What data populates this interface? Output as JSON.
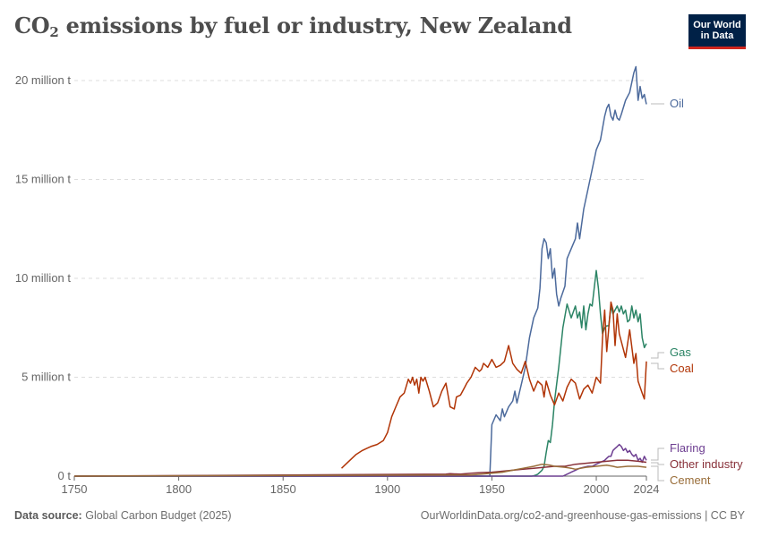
{
  "title": {
    "main": "CO",
    "subscript": "2",
    "rest": " emissions by fuel or industry, New Zealand"
  },
  "logo": {
    "line1": "Our World",
    "line2": "in Data"
  },
  "footer": {
    "source_label": "Data source:",
    "source_value": "Global Carbon Budget (2025)",
    "attribution": "OurWorldinData.org/co2-and-greenhouse-gas-emissions | CC BY"
  },
  "colors": {
    "Oil": "#4c6a9c",
    "Gas": "#2b8465",
    "Coal": "#b13507",
    "Flaring": "#6d3e91",
    "Other industry": "#883039",
    "Cement": "#996d39",
    "grid": "#dddddd",
    "axis": "#666666",
    "text": "#5b5b5b",
    "logo_bg": "#002147",
    "logo_accent": "#ce261e"
  },
  "chart_data": {
    "type": "line",
    "xlim": [
      1750,
      2024
    ],
    "ylim": [
      0,
      20000000
    ],
    "x_ticks": [
      {
        "value": 1750,
        "label": "1750"
      },
      {
        "value": 1800,
        "label": "1800"
      },
      {
        "value": 1850,
        "label": "1850"
      },
      {
        "value": 1900,
        "label": "1900"
      },
      {
        "value": 1950,
        "label": "1950"
      },
      {
        "value": 2000,
        "label": "2000"
      },
      {
        "value": 2024,
        "label": "2024"
      }
    ],
    "y_ticks": [
      {
        "value": 0,
        "label": "0 t"
      },
      {
        "value": 5000000,
        "label": "5 million t"
      },
      {
        "value": 10000000,
        "label": "10 million t"
      },
      {
        "value": 15000000,
        "label": "15 million t"
      },
      {
        "value": 20000000,
        "label": "20 million t"
      }
    ],
    "grid": "horizontal dashed",
    "legend": "right (end-of-line labels)",
    "series": [
      {
        "name": "Oil",
        "x": [
          1750,
          1948,
          1949,
          1950,
          1952,
          1954,
          1955,
          1956,
          1958,
          1960,
          1961,
          1962,
          1964,
          1966,
          1968,
          1970,
          1972,
          1973,
          1974,
          1975,
          1976,
          1977,
          1978,
          1979,
          1980,
          1981,
          1982,
          1983,
          1985,
          1986,
          1988,
          1990,
          1991,
          1992,
          1994,
          1996,
          1998,
          2000,
          2002,
          2004,
          2005,
          2006,
          2007,
          2008,
          2009,
          2010,
          2011,
          2012,
          2014,
          2016,
          2018,
          2019,
          2020,
          2021,
          2022,
          2023,
          2024
        ],
        "values": [
          0,
          0,
          0,
          2600000,
          3100000,
          2800000,
          3400000,
          3000000,
          3500000,
          3800000,
          4300000,
          3700000,
          4600000,
          5500000,
          7000000,
          8000000,
          8500000,
          9500000,
          11500000,
          12000000,
          11800000,
          11000000,
          11500000,
          10000000,
          10500000,
          9200000,
          8600000,
          9000000,
          9600000,
          11000000,
          11500000,
          12000000,
          12800000,
          12000000,
          13500000,
          14500000,
          15500000,
          16500000,
          17000000,
          18200000,
          18600000,
          18800000,
          18200000,
          18000000,
          18500000,
          18100000,
          18000000,
          18300000,
          19000000,
          19400000,
          20400000,
          20700000,
          19000000,
          19700000,
          19100000,
          19300000,
          18800000
        ]
      },
      {
        "name": "Gas",
        "x": [
          1750,
          1969,
          1970,
          1971,
          1972,
          1973,
          1974,
          1975,
          1976,
          1977,
          1978,
          1979,
          1980,
          1982,
          1984,
          1986,
          1988,
          1990,
          1991,
          1992,
          1993,
          1994,
          1995,
          1996,
          1997,
          1998,
          1999,
          2000,
          2001,
          2002,
          2003,
          2004,
          2005,
          2006,
          2007,
          2008,
          2009,
          2010,
          2011,
          2012,
          2013,
          2014,
          2015,
          2016,
          2017,
          2018,
          2019,
          2020,
          2021,
          2022,
          2023,
          2024
        ],
        "values": [
          0,
          0,
          20000,
          50000,
          100000,
          200000,
          300000,
          500000,
          1200000,
          1800000,
          1700000,
          2600000,
          3800000,
          5500000,
          7500000,
          8700000,
          8000000,
          8600000,
          8000000,
          8300000,
          7500000,
          8600000,
          7400000,
          8200000,
          8700000,
          8600000,
          9500000,
          10400000,
          9500000,
          8200000,
          7200000,
          7500000,
          7600000,
          7600000,
          8600000,
          8200000,
          8400000,
          8600000,
          8300000,
          8600000,
          8200000,
          8400000,
          7800000,
          7900000,
          8600000,
          8000000,
          8400000,
          7800000,
          8200000,
          7000000,
          6500000,
          6700000
        ]
      },
      {
        "name": "Coal",
        "x": [
          1878,
          1880,
          1882,
          1885,
          1888,
          1890,
          1892,
          1895,
          1898,
          1900,
          1902,
          1904,
          1906,
          1908,
          1910,
          1911,
          1912,
          1913,
          1914,
          1915,
          1916,
          1917,
          1918,
          1920,
          1922,
          1924,
          1926,
          1928,
          1930,
          1932,
          1933,
          1935,
          1937,
          1938,
          1940,
          1942,
          1944,
          1945,
          1946,
          1948,
          1950,
          1952,
          1954,
          1956,
          1958,
          1960,
          1962,
          1964,
          1966,
          1968,
          1970,
          1972,
          1974,
          1975,
          1976,
          1978,
          1980,
          1982,
          1984,
          1986,
          1988,
          1990,
          1992,
          1994,
          1996,
          1998,
          2000,
          2002,
          2003,
          2004,
          2005,
          2006,
          2007,
          2008,
          2009,
          2010,
          2011,
          2012,
          2014,
          2016,
          2018,
          2019,
          2020,
          2021,
          2022,
          2023,
          2024
        ],
        "values": [
          400000,
          600000,
          800000,
          1100000,
          1300000,
          1400000,
          1500000,
          1600000,
          1800000,
          2200000,
          3000000,
          3500000,
          4000000,
          4200000,
          4900000,
          4700000,
          5000000,
          4600000,
          4900000,
          4200000,
          5000000,
          4800000,
          5000000,
          4300000,
          3500000,
          3700000,
          4300000,
          4700000,
          3500000,
          3400000,
          4000000,
          4100000,
          4500000,
          4700000,
          5000000,
          5500000,
          5300000,
          5400000,
          5700000,
          5500000,
          5900000,
          5500000,
          5600000,
          5800000,
          6600000,
          5700000,
          5400000,
          5200000,
          5800000,
          4900000,
          4300000,
          4800000,
          4600000,
          4000000,
          4800000,
          4100000,
          3600000,
          4200000,
          3800000,
          4500000,
          4900000,
          4700000,
          3900000,
          4400000,
          4600000,
          4200000,
          5000000,
          4700000,
          7000000,
          8400000,
          6300000,
          7500000,
          8800000,
          8400000,
          6600000,
          8200000,
          7200000,
          6800000,
          6000000,
          7400000,
          5700000,
          6200000,
          4800000,
          4500000,
          4200000,
          3900000,
          5800000
        ]
      },
      {
        "name": "Flaring",
        "x": [
          1750,
          1984,
          1986,
          1988,
          1990,
          1992,
          1994,
          1996,
          1998,
          2000,
          2002,
          2004,
          2005,
          2006,
          2007,
          2008,
          2009,
          2010,
          2011,
          2012,
          2013,
          2014,
          2015,
          2016,
          2017,
          2018,
          2019,
          2020,
          2021,
          2022,
          2023,
          2024
        ],
        "values": [
          0,
          0,
          100000,
          200000,
          300000,
          400000,
          450000,
          500000,
          500000,
          600000,
          700000,
          800000,
          900000,
          1000000,
          1000000,
          1300000,
          1400000,
          1500000,
          1600000,
          1500000,
          1300000,
          1400000,
          1200000,
          1300000,
          1100000,
          1000000,
          1100000,
          800000,
          900000,
          700000,
          1000000,
          800000
        ]
      },
      {
        "name": "Other industry",
        "x": [
          1750,
          1928,
          1930,
          1935,
          1940,
          1945,
          1950,
          1955,
          1960,
          1965,
          1970,
          1975,
          1980,
          1985,
          1990,
          1995,
          2000,
          2005,
          2010,
          2015,
          2020,
          2024
        ],
        "values": [
          0,
          100000,
          120000,
          100000,
          150000,
          180000,
          200000,
          250000,
          300000,
          350000,
          400000,
          450000,
          500000,
          500000,
          600000,
          650000,
          700000,
          750000,
          800000,
          800000,
          750000,
          700000
        ]
      },
      {
        "name": "Cement",
        "x": [
          1750,
          1940,
          1945,
          1950,
          1955,
          1960,
          1965,
          1970,
          1974,
          1978,
          1980,
          1985,
          1988,
          1990,
          1995,
          2000,
          2005,
          2008,
          2010,
          2015,
          2020,
          2024
        ],
        "values": [
          0,
          60000,
          100000,
          150000,
          200000,
          300000,
          400000,
          500000,
          600000,
          550000,
          500000,
          450000,
          400000,
          350000,
          450000,
          500000,
          550000,
          500000,
          450000,
          500000,
          500000,
          450000
        ]
      }
    ]
  }
}
